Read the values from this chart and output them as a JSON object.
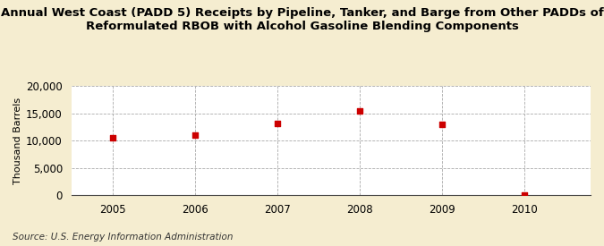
{
  "title": "Annual West Coast (PADD 5) Receipts by Pipeline, Tanker, and Barge from Other PADDs of\nReformulated RBOB with Alcohol Gasoline Blending Components",
  "ylabel": "Thousand Barrels",
  "source": "Source: U.S. Energy Information Administration",
  "years": [
    2005,
    2006,
    2007,
    2008,
    2009,
    2010
  ],
  "values": [
    10507,
    10988,
    13077,
    15387,
    12990,
    43
  ],
  "ylim": [
    0,
    20000
  ],
  "yticks": [
    0,
    5000,
    10000,
    15000,
    20000
  ],
  "xlim": [
    2004.5,
    2010.8
  ],
  "background_color": "#F5EDD0",
  "plot_bg_color": "#FFFFFF",
  "marker_color": "#CC0000",
  "grid_color": "#AAAAAA",
  "title_fontsize": 9.5,
  "axis_fontsize": 8.5,
  "ylabel_fontsize": 8,
  "source_fontsize": 7.5
}
